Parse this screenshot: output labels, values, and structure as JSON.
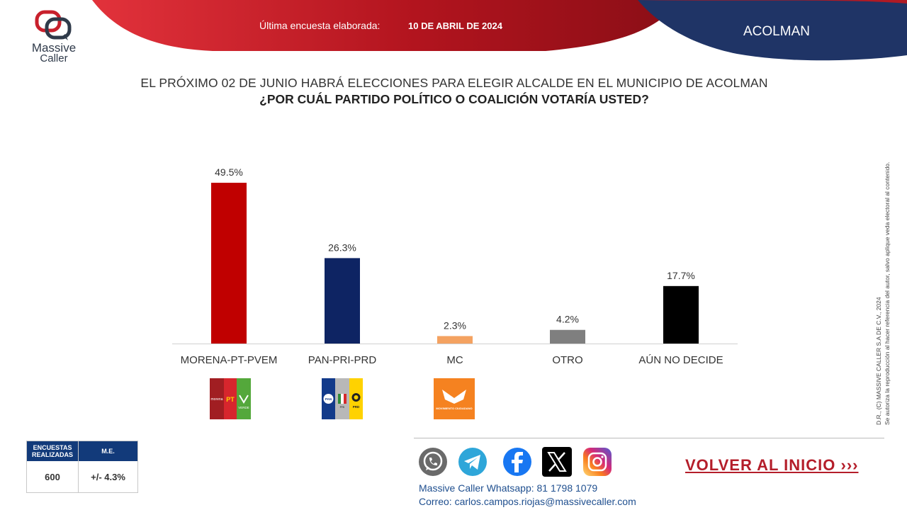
{
  "header": {
    "label": "Última encuesta elaborada:",
    "date": "10 DE ABRIL DE 2024",
    "region": "ACOLMAN"
  },
  "logo": {
    "line1": "Massive",
    "line2": "Caller"
  },
  "question": {
    "line1": "EL PRÓXIMO 02 DE JUNIO HABRÁ ELECCIONES PARA ELEGIR ALCALDE EN EL MUNICIPIO DE ACOLMAN",
    "line2": "¿POR CUÁL PARTIDO POLÍTICO O COALICIÓN VOTARÍA USTED?"
  },
  "chart_data": {
    "type": "bar",
    "categories": [
      "MORENA-PT-PVEM",
      "PAN-PRI-PRD",
      "MC",
      "OTRO",
      "AÚN NO DECIDE"
    ],
    "values": [
      49.5,
      26.3,
      2.3,
      4.2,
      17.7
    ],
    "data_labels": [
      "49.5%",
      "26.3%",
      "2.3%",
      "4.2%",
      "17.7%"
    ],
    "colors": [
      "#c00000",
      "#0e2463",
      "#f4a261",
      "#7f7f7f",
      "#000000"
    ],
    "ylim": [
      0,
      49.5
    ],
    "grid": false,
    "legend": "none"
  },
  "party_logos": {
    "morena_text": "morena",
    "pt_text": "PT",
    "verde_text": "VERDE",
    "pan_text": "PAN",
    "pri_text": "PRI",
    "prd_text": "PRD",
    "mc_text": "MOVIMIENTO CIUDADANO"
  },
  "side_note": {
    "line1": "D.R., (C) MASSIVE CALLER S.A DE C.V., 2024",
    "line2": "Se autoriza la reproducción al hacer referencia del autor, salvo aplique veda electoral al contenido."
  },
  "stats": {
    "col1_header": "ENCUESTAS REALIZADAS",
    "col2_header": "M.E.",
    "col1_value": "600",
    "col2_value": "+/- 4.3%"
  },
  "social": [
    "whatsapp-icon",
    "telegram-icon",
    "facebook-icon",
    "x-icon",
    "instagram-icon"
  ],
  "contact": {
    "whatsapp_label": "Massive Caller Whatsapp:",
    "whatsapp_number": "81 1798 1079",
    "email_label": "Correo:",
    "email": "carlos.campos.riojas@massivecaller.com"
  },
  "home_link": "VOLVER AL INICIO ›››",
  "colors": {
    "header_red": "#b01a24",
    "header_navy": "#1f3466",
    "link_red": "#b41e2a"
  }
}
